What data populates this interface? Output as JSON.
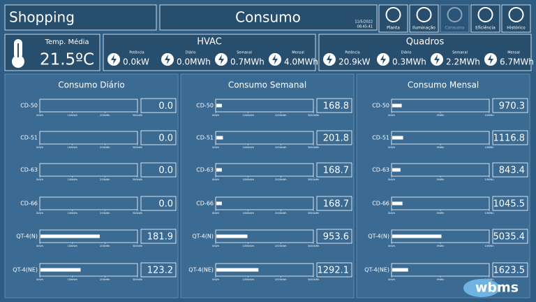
{
  "header": {
    "title": "Shopping",
    "page": "Consumo",
    "date": "11/5/2022",
    "time": "08:45:41",
    "nav": [
      "Planta",
      "Iluminação",
      "Consumo",
      "Eficiência",
      "Histórico"
    ]
  },
  "temperature": {
    "label": "Temp. Média",
    "value": "21.5ºC"
  },
  "summaries": [
    {
      "title": "HVAC",
      "items": [
        {
          "label": "Potência",
          "value": "0.0kW"
        },
        {
          "label": "Diário",
          "value": "0.0MWh"
        },
        {
          "label": "Semanal",
          "value": "0.7MWh"
        },
        {
          "label": "Mensal",
          "value": "4.0MWh"
        }
      ]
    },
    {
      "title": "Quadros",
      "items": [
        {
          "label": "Potência",
          "value": "20.9kW"
        },
        {
          "label": "Diário",
          "value": "0.3MWh"
        },
        {
          "label": "Semanal",
          "value": "2.2MWh"
        },
        {
          "label": "Mensal",
          "value": "6.7MWh"
        }
      ]
    }
  ],
  "panels": [
    {
      "title": "Consumo Diário",
      "xlim": [
        0,
        300
      ],
      "xticks": [
        {
          "value": 0,
          "label": "0kWh"
        },
        {
          "value": 100,
          "label": "100kWh"
        },
        {
          "value": 200,
          "label": "200kWh"
        },
        {
          "value": 300,
          "label": "300kWh"
        }
      ],
      "rows": [
        {
          "label": "CD-50",
          "value": 0,
          "value_label": "0.0"
        },
        {
          "label": "CD-51",
          "value": 0,
          "value_label": "0.0"
        },
        {
          "label": "CD-63",
          "value": 0,
          "value_label": "0.0"
        },
        {
          "label": "CD-66",
          "value": 0,
          "value_label": "0.0"
        },
        {
          "label": "QT-4(N)",
          "value": 181.9
        },
        {
          "label": "QT-4(NE)",
          "value": 123.2
        }
      ]
    },
    {
      "title": "Consumo Semanal",
      "xlim": [
        0,
        3000
      ],
      "xticks": [
        {
          "value": 0,
          "label": "0kWh"
        },
        {
          "value": 1000,
          "label": "1000kWh"
        },
        {
          "value": 2000,
          "label": "2000kWh"
        },
        {
          "value": 3000,
          "label": "3000kWh"
        }
      ],
      "rows": [
        {
          "label": "CD-50",
          "value": 168.8
        },
        {
          "label": "CD-51",
          "value": 201.8
        },
        {
          "label": "CD-63",
          "value": 168.7
        },
        {
          "label": "CD-66",
          "value": 168.7
        },
        {
          "label": "QT-4(N)",
          "value": 953.6
        },
        {
          "label": "QT-4(NE)",
          "value": 1292.1
        }
      ]
    },
    {
      "title": "Consumo Mensal",
      "xlim": [
        0,
        10000
      ],
      "xticks": [
        {
          "value": 0,
          "label": "0kWh"
        },
        {
          "value": 5000,
          "label": "5MWh"
        },
        {
          "value": 10000,
          "label": "10MWh"
        }
      ],
      "rows": [
        {
          "label": "CD-50",
          "value": 970.3
        },
        {
          "label": "CD-51",
          "value": 1116.8
        },
        {
          "label": "CD-63",
          "value": 843.4
        },
        {
          "label": "CD-66",
          "value": 1045.5
        },
        {
          "label": "QT-4(N)",
          "value": 5035.4
        },
        {
          "label": "QT-4(NE)",
          "value": 1623.5
        }
      ]
    }
  ],
  "logo": "wbms"
}
